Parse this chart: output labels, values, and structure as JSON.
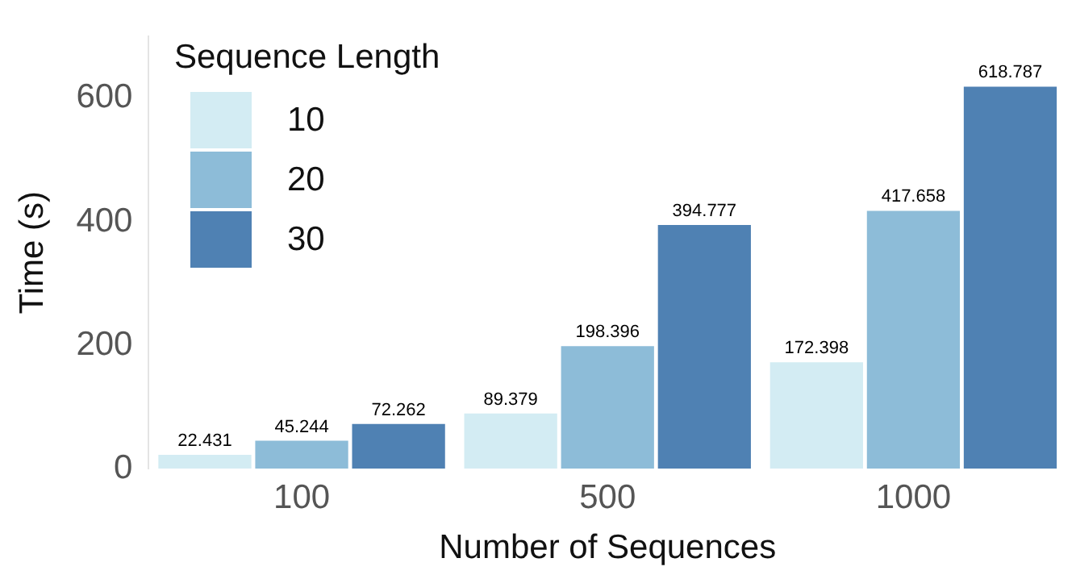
{
  "chart_data": {
    "type": "bar",
    "xlabel": "Number of Sequences",
    "ylabel": "Time (s)",
    "legend_title": "Sequence Length",
    "categories": [
      "100",
      "500",
      "1000"
    ],
    "series": [
      {
        "name": "10",
        "color": "#d3ecf3",
        "values": [
          22.431,
          89.379,
          172.398
        ]
      },
      {
        "name": "20",
        "color": "#8dbcd8",
        "values": [
          45.244,
          198.396,
          417.658
        ]
      },
      {
        "name": "30",
        "color": "#4f81b3",
        "values": [
          72.262,
          394.777,
          618.787
        ]
      }
    ],
    "ylim": [
      0,
      700
    ],
    "yticks": [
      0,
      200,
      400,
      600
    ],
    "grid": false,
    "legend": "top left",
    "data_labels": true
  }
}
